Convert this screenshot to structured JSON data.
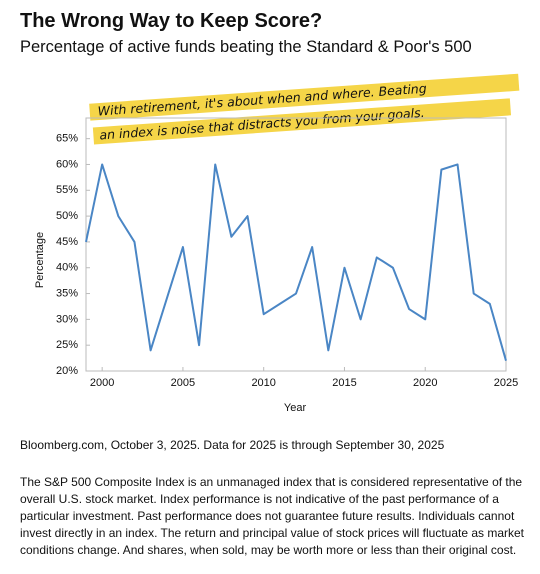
{
  "chart_data": {
    "type": "line",
    "title": "The Wrong Way to Keep Score?",
    "subtitle": "Percentage of active funds beating the Standard & Poor's 500",
    "annotation": [
      "With retirement, it's about when and where. Beating",
      "an index is noise that distracts you from your goals."
    ],
    "x_label": "Year",
    "y_label": "Percentage",
    "x": [
      1999,
      2000,
      2001,
      2002,
      2003,
      2004,
      2005,
      2006,
      2007,
      2008,
      2009,
      2010,
      2011,
      2012,
      2013,
      2014,
      2015,
      2016,
      2017,
      2018,
      2019,
      2020,
      2021,
      2022,
      2023,
      2024,
      2025
    ],
    "values": [
      45,
      60,
      50,
      45,
      24,
      34,
      44,
      25,
      60,
      46,
      50,
      31,
      33,
      35,
      44,
      24,
      40,
      30,
      42,
      40,
      32,
      30,
      59,
      60,
      35,
      33,
      22
    ],
    "color": "#4a86c5",
    "xlim": [
      1999,
      2025
    ],
    "xticks": [
      2000,
      2005,
      2010,
      2015,
      2020,
      2025
    ],
    "ylim": [
      20,
      69
    ],
    "yticks": [
      {
        "value": 20,
        "label": "20%"
      },
      {
        "value": 25,
        "label": "25%"
      },
      {
        "value": 30,
        "label": "30%"
      },
      {
        "value": 35,
        "label": "35%"
      },
      {
        "value": 40,
        "label": "40%"
      },
      {
        "value": 45,
        "label": "45%"
      },
      {
        "value": 50,
        "label": "50%"
      },
      {
        "value": 55,
        "label": "55%"
      },
      {
        "value": 60,
        "label": "60%"
      },
      {
        "value": 65,
        "label": "65%"
      }
    ],
    "grid": false
  },
  "source": "Bloomberg.com, October 3, 2025. Data for 2025 is through September 30, 2025",
  "disclaimer": "The S&P 500 Composite Index is an unmanaged index that is considered representative of the overall U.S. stock market. Index performance is not indicative of the past performance of a particular investment. Past performance does not guarantee future results. Individuals cannot invest directly in an index. The return and principal value of stock prices will fluctuate as market conditions change. And shares, when sold, may be worth more or less than their original cost."
}
